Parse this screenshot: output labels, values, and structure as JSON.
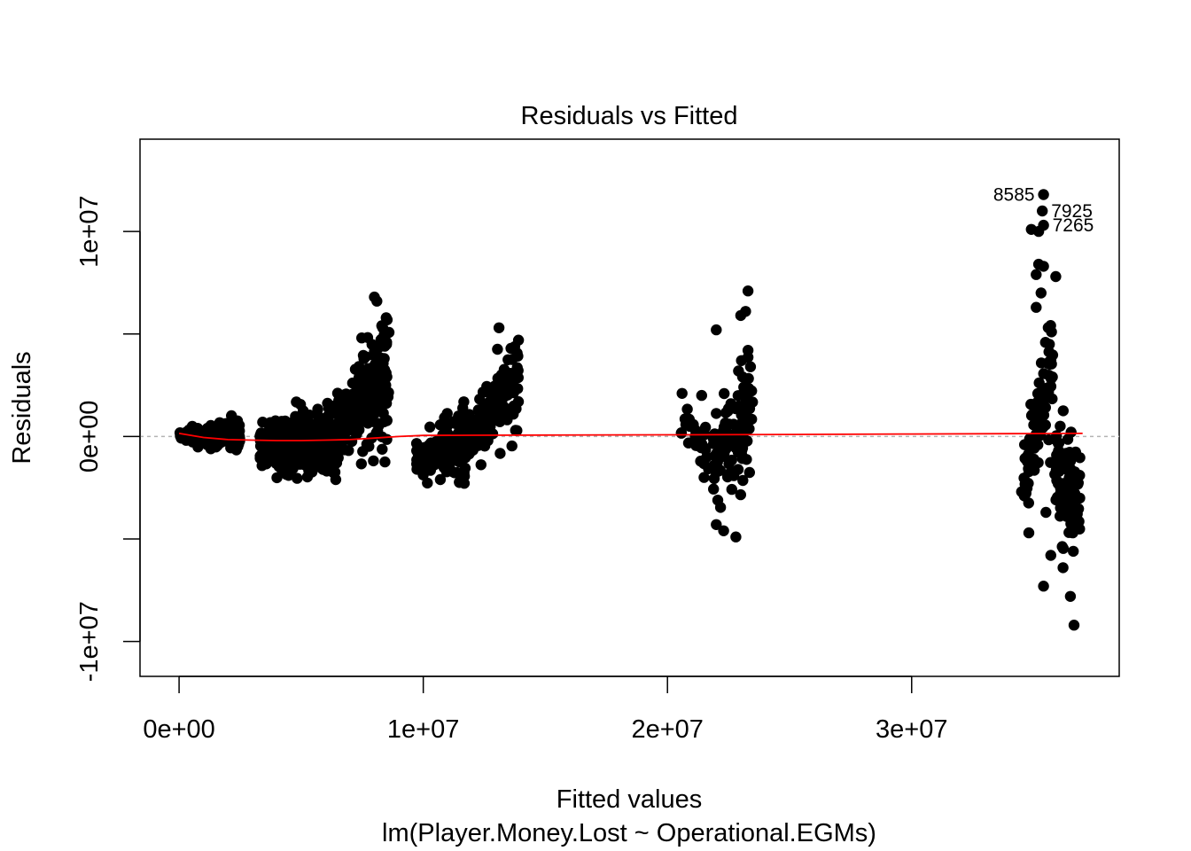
{
  "chart_data": {
    "type": "scatter",
    "title": "Residuals vs Fitted",
    "xlabel": "Fitted values",
    "subtitle": "lm(Player.Money.Lost ~ Operational.EGMs)",
    "ylabel": "Residuals",
    "xlim": [
      -1600000,
      38500000
    ],
    "ylim": [
      -11700000,
      14500000
    ],
    "x_ticks": [
      0,
      10000000,
      20000000,
      30000000
    ],
    "x_tick_labels": [
      "0e+00",
      "1e+07",
      "2e+07",
      "3e+07"
    ],
    "y_ticks": [
      -10000000,
      -5000000,
      0,
      5000000,
      10000000
    ],
    "y_tick_labels": [
      "-1e+07",
      "",
      "0e+00",
      "",
      "1e+07"
    ],
    "reference_line_y": 0,
    "colors": {
      "points": "#000000",
      "smooth": "#ff0000",
      "reference": "#b3b3b3"
    },
    "labeled_points": [
      {
        "label": "8585",
        "x": 35400000,
        "y": 11800000
      },
      {
        "label": "7925",
        "x": 35350000,
        "y": 11000000
      },
      {
        "label": "7265",
        "x": 35400000,
        "y": 10300000
      }
    ],
    "smooth_line": {
      "x": [
        0,
        1000000,
        2000000,
        3000000,
        4000000,
        5000000,
        6000000,
        7000000,
        8000000,
        9000000,
        10000000,
        12000000,
        15000000,
        20000000,
        25000000,
        30000000,
        35000000,
        37000000
      ],
      "y": [
        150000,
        -50000,
        -150000,
        -180000,
        -200000,
        -200000,
        -180000,
        -150000,
        -80000,
        0,
        50000,
        60000,
        70000,
        80000,
        100000,
        120000,
        140000,
        150000
      ]
    },
    "clusters": [
      {
        "x": [
          0,
          2500000
        ],
        "center_start": 0,
        "center_end": 0,
        "spread_start": 300000,
        "spread_end": 1000000,
        "count": 160
      },
      {
        "x": [
          3300000,
          6500000
        ],
        "center_start": -500000,
        "center_end": 0,
        "spread_start": 1000000,
        "spread_end": 2000000,
        "count": 360
      },
      {
        "x": [
          6500000,
          8600000
        ],
        "center_start": 500000,
        "center_end": 3000000,
        "spread_start": 1500000,
        "spread_end": 3200000,
        "count": 240
      },
      {
        "x": [
          9700000,
          11800000
        ],
        "center_start": -1000000,
        "center_end": -500000,
        "spread_start": 800000,
        "spread_end": 2000000,
        "count": 130
      },
      {
        "x": [
          11800000,
          13900000
        ],
        "center_start": 0,
        "center_end": 2500000,
        "spread_start": 1200000,
        "spread_end": 2500000,
        "count": 130
      },
      {
        "x": [
          20500000,
          21700000
        ],
        "center_start": 1000000,
        "center_end": -1000000,
        "spread_start": 1200000,
        "spread_end": 1500000,
        "count": 30
      },
      {
        "x": [
          21800000,
          23500000
        ],
        "center_start": -1500000,
        "center_end": 1500000,
        "spread_start": 2000000,
        "spread_end": 3000000,
        "count": 95
      },
      {
        "x": [
          34600000,
          35800000
        ],
        "center_start": -2000000,
        "center_end": 4000000,
        "spread_start": 1500000,
        "spread_end": 3500000,
        "count": 85
      },
      {
        "x": [
          35800000,
          36900000
        ],
        "center_start": -1500000,
        "center_end": -3000000,
        "spread_start": 2500000,
        "spread_end": 2200000,
        "count": 100
      }
    ],
    "extra_points": [
      {
        "x": 20600000,
        "y": 2100000
      },
      {
        "x": 21400000,
        "y": 2000000
      },
      {
        "x": 21500000,
        "y": -2000000
      },
      {
        "x": 22000000,
        "y": 5200000
      },
      {
        "x": 23000000,
        "y": 5900000
      },
      {
        "x": 23300000,
        "y": 7100000
      },
      {
        "x": 23200000,
        "y": 6100000
      },
      {
        "x": 23300000,
        "y": 4200000
      },
      {
        "x": 23400000,
        "y": 3400000
      },
      {
        "x": 22000000,
        "y": -4300000
      },
      {
        "x": 22300000,
        "y": -4600000
      },
      {
        "x": 22800000,
        "y": -4900000
      },
      {
        "x": 13100000,
        "y": 5300000
      },
      {
        "x": 13900000,
        "y": 4700000
      },
      {
        "x": 13200000,
        "y": 3000000
      },
      {
        "x": 8000000,
        "y": 6800000
      },
      {
        "x": 8100000,
        "y": 6600000
      },
      {
        "x": 8300000,
        "y": 5400000
      },
      {
        "x": 8500000,
        "y": 4600000
      },
      {
        "x": 8400000,
        "y": 3800000
      },
      {
        "x": 34900000,
        "y": 10100000
      },
      {
        "x": 35200000,
        "y": 10000000
      },
      {
        "x": 35200000,
        "y": 8400000
      },
      {
        "x": 35400000,
        "y": 8300000
      },
      {
        "x": 35100000,
        "y": 7900000
      },
      {
        "x": 35900000,
        "y": 7800000
      },
      {
        "x": 35300000,
        "y": 7000000
      },
      {
        "x": 35100000,
        "y": 6300000
      },
      {
        "x": 34700000,
        "y": -1100000
      },
      {
        "x": 34500000,
        "y": -2700000
      },
      {
        "x": 34800000,
        "y": -4700000
      },
      {
        "x": 35400000,
        "y": -7300000
      },
      {
        "x": 35700000,
        "y": -5800000
      },
      {
        "x": 36200000,
        "y": -6400000
      },
      {
        "x": 36500000,
        "y": -7800000
      },
      {
        "x": 36650000,
        "y": -9200000
      },
      {
        "x": 36600000,
        "y": -4700000
      },
      {
        "x": 35500000,
        "y": -3700000
      },
      {
        "x": 36000000,
        "y": -2300000
      }
    ]
  }
}
